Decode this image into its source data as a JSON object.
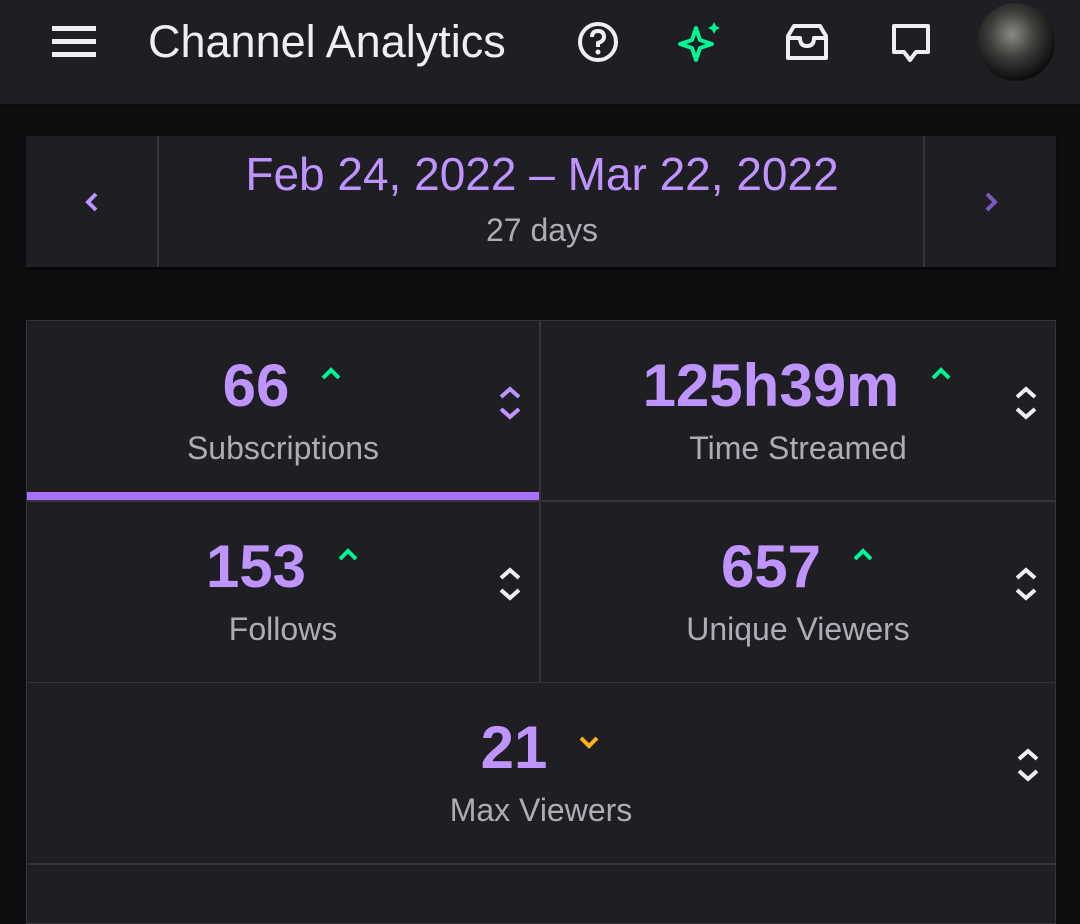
{
  "header": {
    "title": "Channel Analytics"
  },
  "date_range": {
    "range": "Feb 24, 2022 – Mar 22, 2022",
    "duration": "27 days"
  },
  "stats": [
    {
      "value": "66",
      "label": "Subscriptions",
      "trend": "up",
      "selected": true
    },
    {
      "value": "125h39m",
      "label": "Time Streamed",
      "trend": "up",
      "selected": false
    },
    {
      "value": "153",
      "label": "Follows",
      "trend": "up",
      "selected": false
    },
    {
      "value": "657",
      "label": "Unique Viewers",
      "trend": "up",
      "selected": false
    },
    {
      "value": "21",
      "label": "Max Viewers",
      "trend": "down",
      "selected": false
    }
  ]
}
